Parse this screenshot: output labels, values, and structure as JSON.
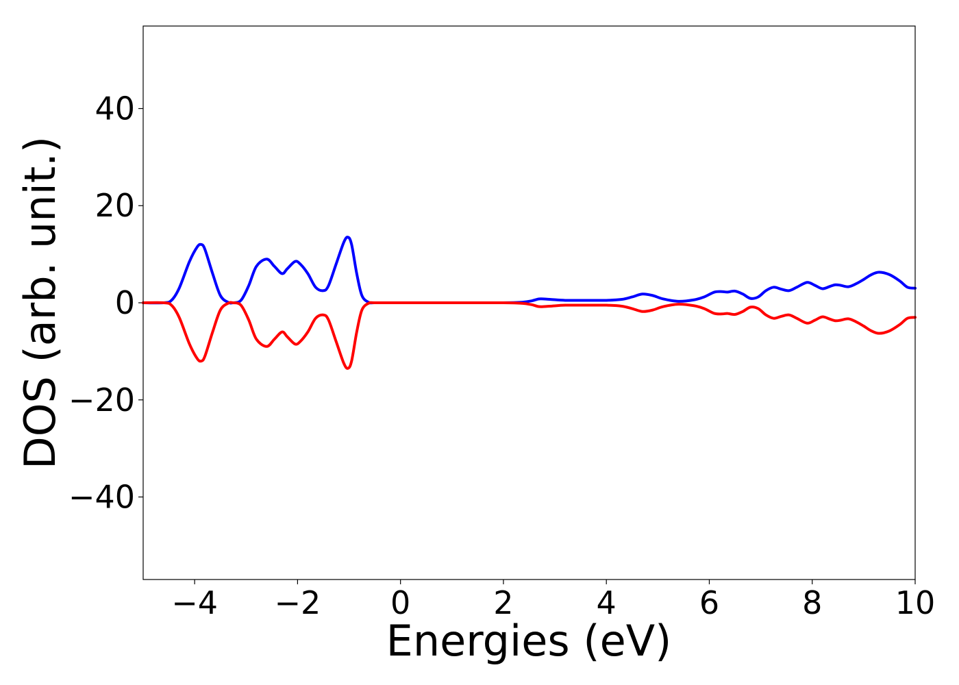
{
  "chart_data": {
    "type": "line",
    "title": "",
    "xlabel": "Energies (eV)",
    "ylabel": "DOS (arb. unit.)",
    "xlim": [
      -5,
      10
    ],
    "ylim": [
      -57,
      57
    ],
    "grid": false,
    "legend": "none",
    "x_ticks": [
      -4,
      -2,
      0,
      2,
      4,
      6,
      8,
      10
    ],
    "x_tick_labels": [
      "−4",
      "−2",
      "0",
      "2",
      "4",
      "6",
      "8",
      "10"
    ],
    "y_ticks": [
      40,
      20,
      0,
      -20,
      -40
    ],
    "y_tick_labels": [
      "40",
      "20",
      "0",
      "−20",
      "−40"
    ],
    "series": [
      {
        "color": "#0000ff",
        "x": [
          -5,
          -4.6,
          -4.45,
          -4.3,
          -4.1,
          -3.95,
          -3.87,
          -3.8,
          -3.65,
          -3.5,
          -3.35,
          -3.25,
          -3.1,
          -2.95,
          -2.8,
          -2.6,
          -2.45,
          -2.3,
          -2.2,
          -2.05,
          -1.95,
          -1.8,
          -1.65,
          -1.5,
          -1.4,
          -1.25,
          -1.1,
          -1.02,
          -0.95,
          -0.85,
          -0.75,
          -0.62,
          -0.5,
          0,
          1,
          2,
          2.35,
          2.55,
          2.7,
          2.9,
          3.2,
          3.6,
          4.0,
          4.3,
          4.5,
          4.7,
          4.9,
          5.1,
          5.4,
          5.7,
          5.9,
          6.1,
          6.25,
          6.35,
          6.5,
          6.65,
          6.8,
          6.95,
          7.1,
          7.25,
          7.4,
          7.55,
          7.7,
          7.9,
          8.05,
          8.2,
          8.35,
          8.45,
          8.55,
          8.7,
          8.85,
          9.0,
          9.15,
          9.3,
          9.5,
          9.7,
          9.85,
          10
        ],
        "y": [
          0,
          0,
          0.5,
          3,
          8.5,
          11.5,
          12,
          11,
          6,
          1.5,
          0.1,
          0,
          0.5,
          3.5,
          7.5,
          9,
          7.5,
          6,
          7,
          8.5,
          8,
          6,
          3.2,
          2.5,
          3.5,
          8,
          12.5,
          13.5,
          12,
          6,
          1.5,
          0.1,
          0,
          0,
          0,
          0,
          0.1,
          0.4,
          0.8,
          0.7,
          0.5,
          0.5,
          0.5,
          0.7,
          1.2,
          1.8,
          1.5,
          0.8,
          0.3,
          0.6,
          1.2,
          2.2,
          2.3,
          2.2,
          2.4,
          1.8,
          0.9,
          1.2,
          2.5,
          3.2,
          2.8,
          2.5,
          3.2,
          4.2,
          3.6,
          2.9,
          3.4,
          3.7,
          3.6,
          3.3,
          3.9,
          4.8,
          5.8,
          6.3,
          5.8,
          4.5,
          3.2,
          3
        ]
      },
      {
        "color": "#ff0000",
        "x": [
          -5,
          -4.6,
          -4.45,
          -4.3,
          -4.1,
          -3.95,
          -3.87,
          -3.8,
          -3.65,
          -3.5,
          -3.35,
          -3.25,
          -3.1,
          -2.95,
          -2.8,
          -2.6,
          -2.45,
          -2.3,
          -2.2,
          -2.05,
          -1.95,
          -1.8,
          -1.65,
          -1.5,
          -1.4,
          -1.25,
          -1.1,
          -1.02,
          -0.95,
          -0.85,
          -0.75,
          -0.62,
          -0.5,
          0,
          1,
          2,
          2.35,
          2.55,
          2.7,
          2.9,
          3.2,
          3.6,
          4.0,
          4.3,
          4.5,
          4.7,
          4.9,
          5.1,
          5.4,
          5.7,
          5.9,
          6.1,
          6.25,
          6.35,
          6.5,
          6.65,
          6.8,
          6.95,
          7.1,
          7.25,
          7.4,
          7.55,
          7.7,
          7.9,
          8.05,
          8.2,
          8.35,
          8.45,
          8.55,
          8.7,
          8.85,
          9.0,
          9.15,
          9.3,
          9.5,
          9.7,
          9.85,
          10
        ],
        "y": [
          0,
          0,
          -0.5,
          -3,
          -8.5,
          -11.5,
          -12,
          -11,
          -6,
          -1.5,
          -0.1,
          0,
          -0.5,
          -3.5,
          -7.5,
          -9,
          -7.5,
          -6,
          -7,
          -8.5,
          -8,
          -6,
          -3.2,
          -2.5,
          -3.5,
          -8,
          -12.5,
          -13.5,
          -12,
          -6,
          -1.5,
          -0.1,
          0,
          0,
          0,
          0,
          -0.1,
          -0.4,
          -0.8,
          -0.7,
          -0.5,
          -0.5,
          -0.5,
          -0.7,
          -1.2,
          -1.8,
          -1.5,
          -0.8,
          -0.3,
          -0.6,
          -1.2,
          -2.2,
          -2.3,
          -2.2,
          -2.4,
          -1.8,
          -0.9,
          -1.2,
          -2.5,
          -3.2,
          -2.8,
          -2.5,
          -3.2,
          -4.2,
          -3.6,
          -2.9,
          -3.4,
          -3.7,
          -3.6,
          -3.3,
          -3.9,
          -4.8,
          -5.8,
          -6.3,
          -5.8,
          -4.5,
          -3.2,
          -3
        ]
      }
    ]
  }
}
